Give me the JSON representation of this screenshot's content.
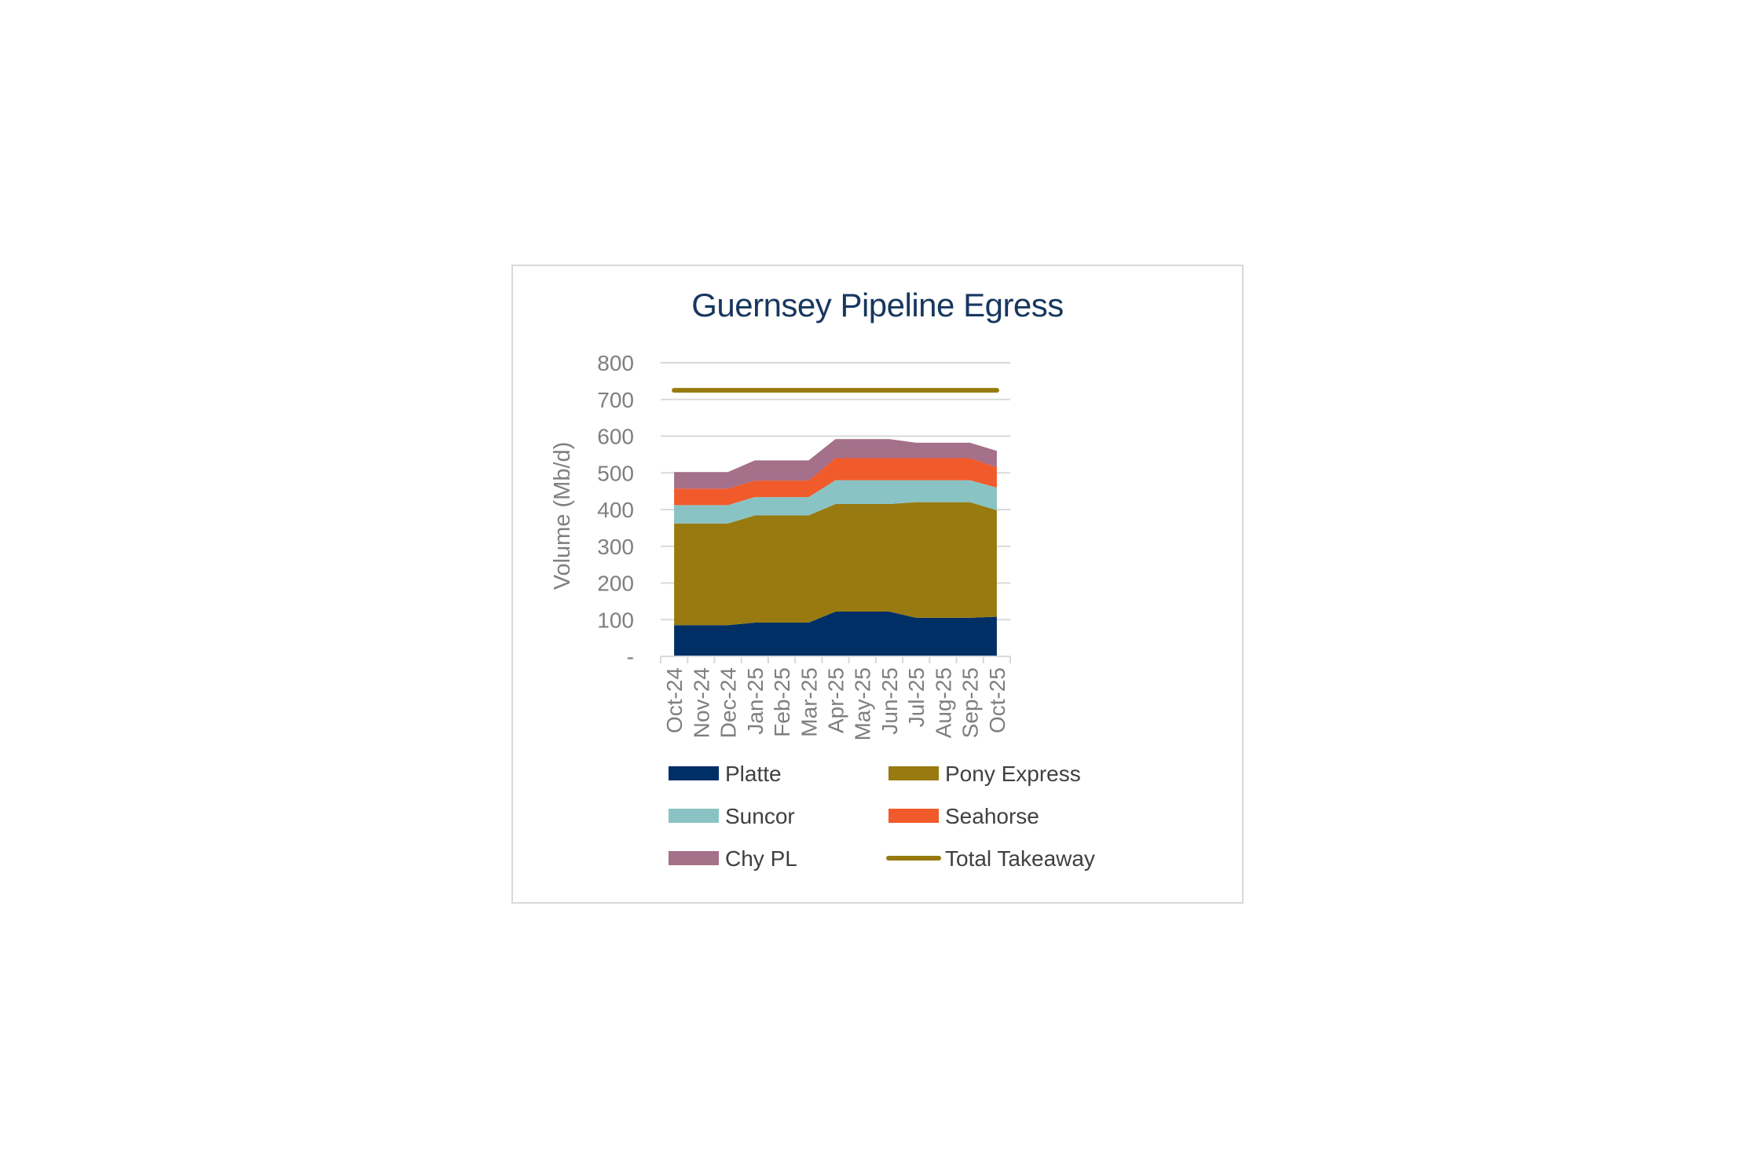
{
  "chart_data": {
    "type": "area",
    "stacked": true,
    "title": "Guernsey Pipeline Egress",
    "ylabel": "Volume (Mb/d)",
    "xlabel": "",
    "ylim": [
      0,
      800
    ],
    "yticks": [
      0,
      100,
      200,
      300,
      400,
      500,
      600,
      700,
      800
    ],
    "ytick_labels": [
      "-",
      "100",
      "200",
      "300",
      "400",
      "500",
      "600",
      "700",
      "800"
    ],
    "grid": true,
    "legend_position": "bottom",
    "categories": [
      "Oct-24",
      "Nov-24",
      "Dec-24",
      "Jan-25",
      "Feb-25",
      "Mar-25",
      "Apr-25",
      "May-25",
      "Jun-25",
      "Jul-25",
      "Aug-25",
      "Sep-25",
      "Oct-25"
    ],
    "series": [
      {
        "name": "Platte",
        "color": "#002f66",
        "values": [
          85,
          85,
          85,
          92,
          92,
          92,
          122,
          122,
          122,
          105,
          105,
          105,
          108
        ]
      },
      {
        "name": "Pony Express",
        "color": "#987a10",
        "values": [
          277,
          277,
          277,
          292,
          292,
          292,
          293,
          293,
          293,
          315,
          315,
          315,
          290
        ]
      },
      {
        "name": "Suncor",
        "color": "#8ac3c3",
        "values": [
          50,
          50,
          50,
          50,
          50,
          50,
          65,
          65,
          65,
          60,
          60,
          60,
          62
        ]
      },
      {
        "name": "Seahorse",
        "color": "#f15a2b",
        "values": [
          45,
          45,
          45,
          45,
          45,
          45,
          60,
          60,
          60,
          60,
          60,
          60,
          55
        ]
      },
      {
        "name": "Chy PL",
        "color": "#a4708a",
        "values": [
          45,
          45,
          45,
          55,
          55,
          55,
          52,
          52,
          52,
          42,
          42,
          42,
          45
        ]
      }
    ],
    "lines": [
      {
        "name": "Total Takeaway",
        "color": "#987a10",
        "values": [
          725,
          725,
          725,
          725,
          725,
          725,
          725,
          725,
          725,
          725,
          725,
          725,
          725
        ]
      }
    ]
  }
}
